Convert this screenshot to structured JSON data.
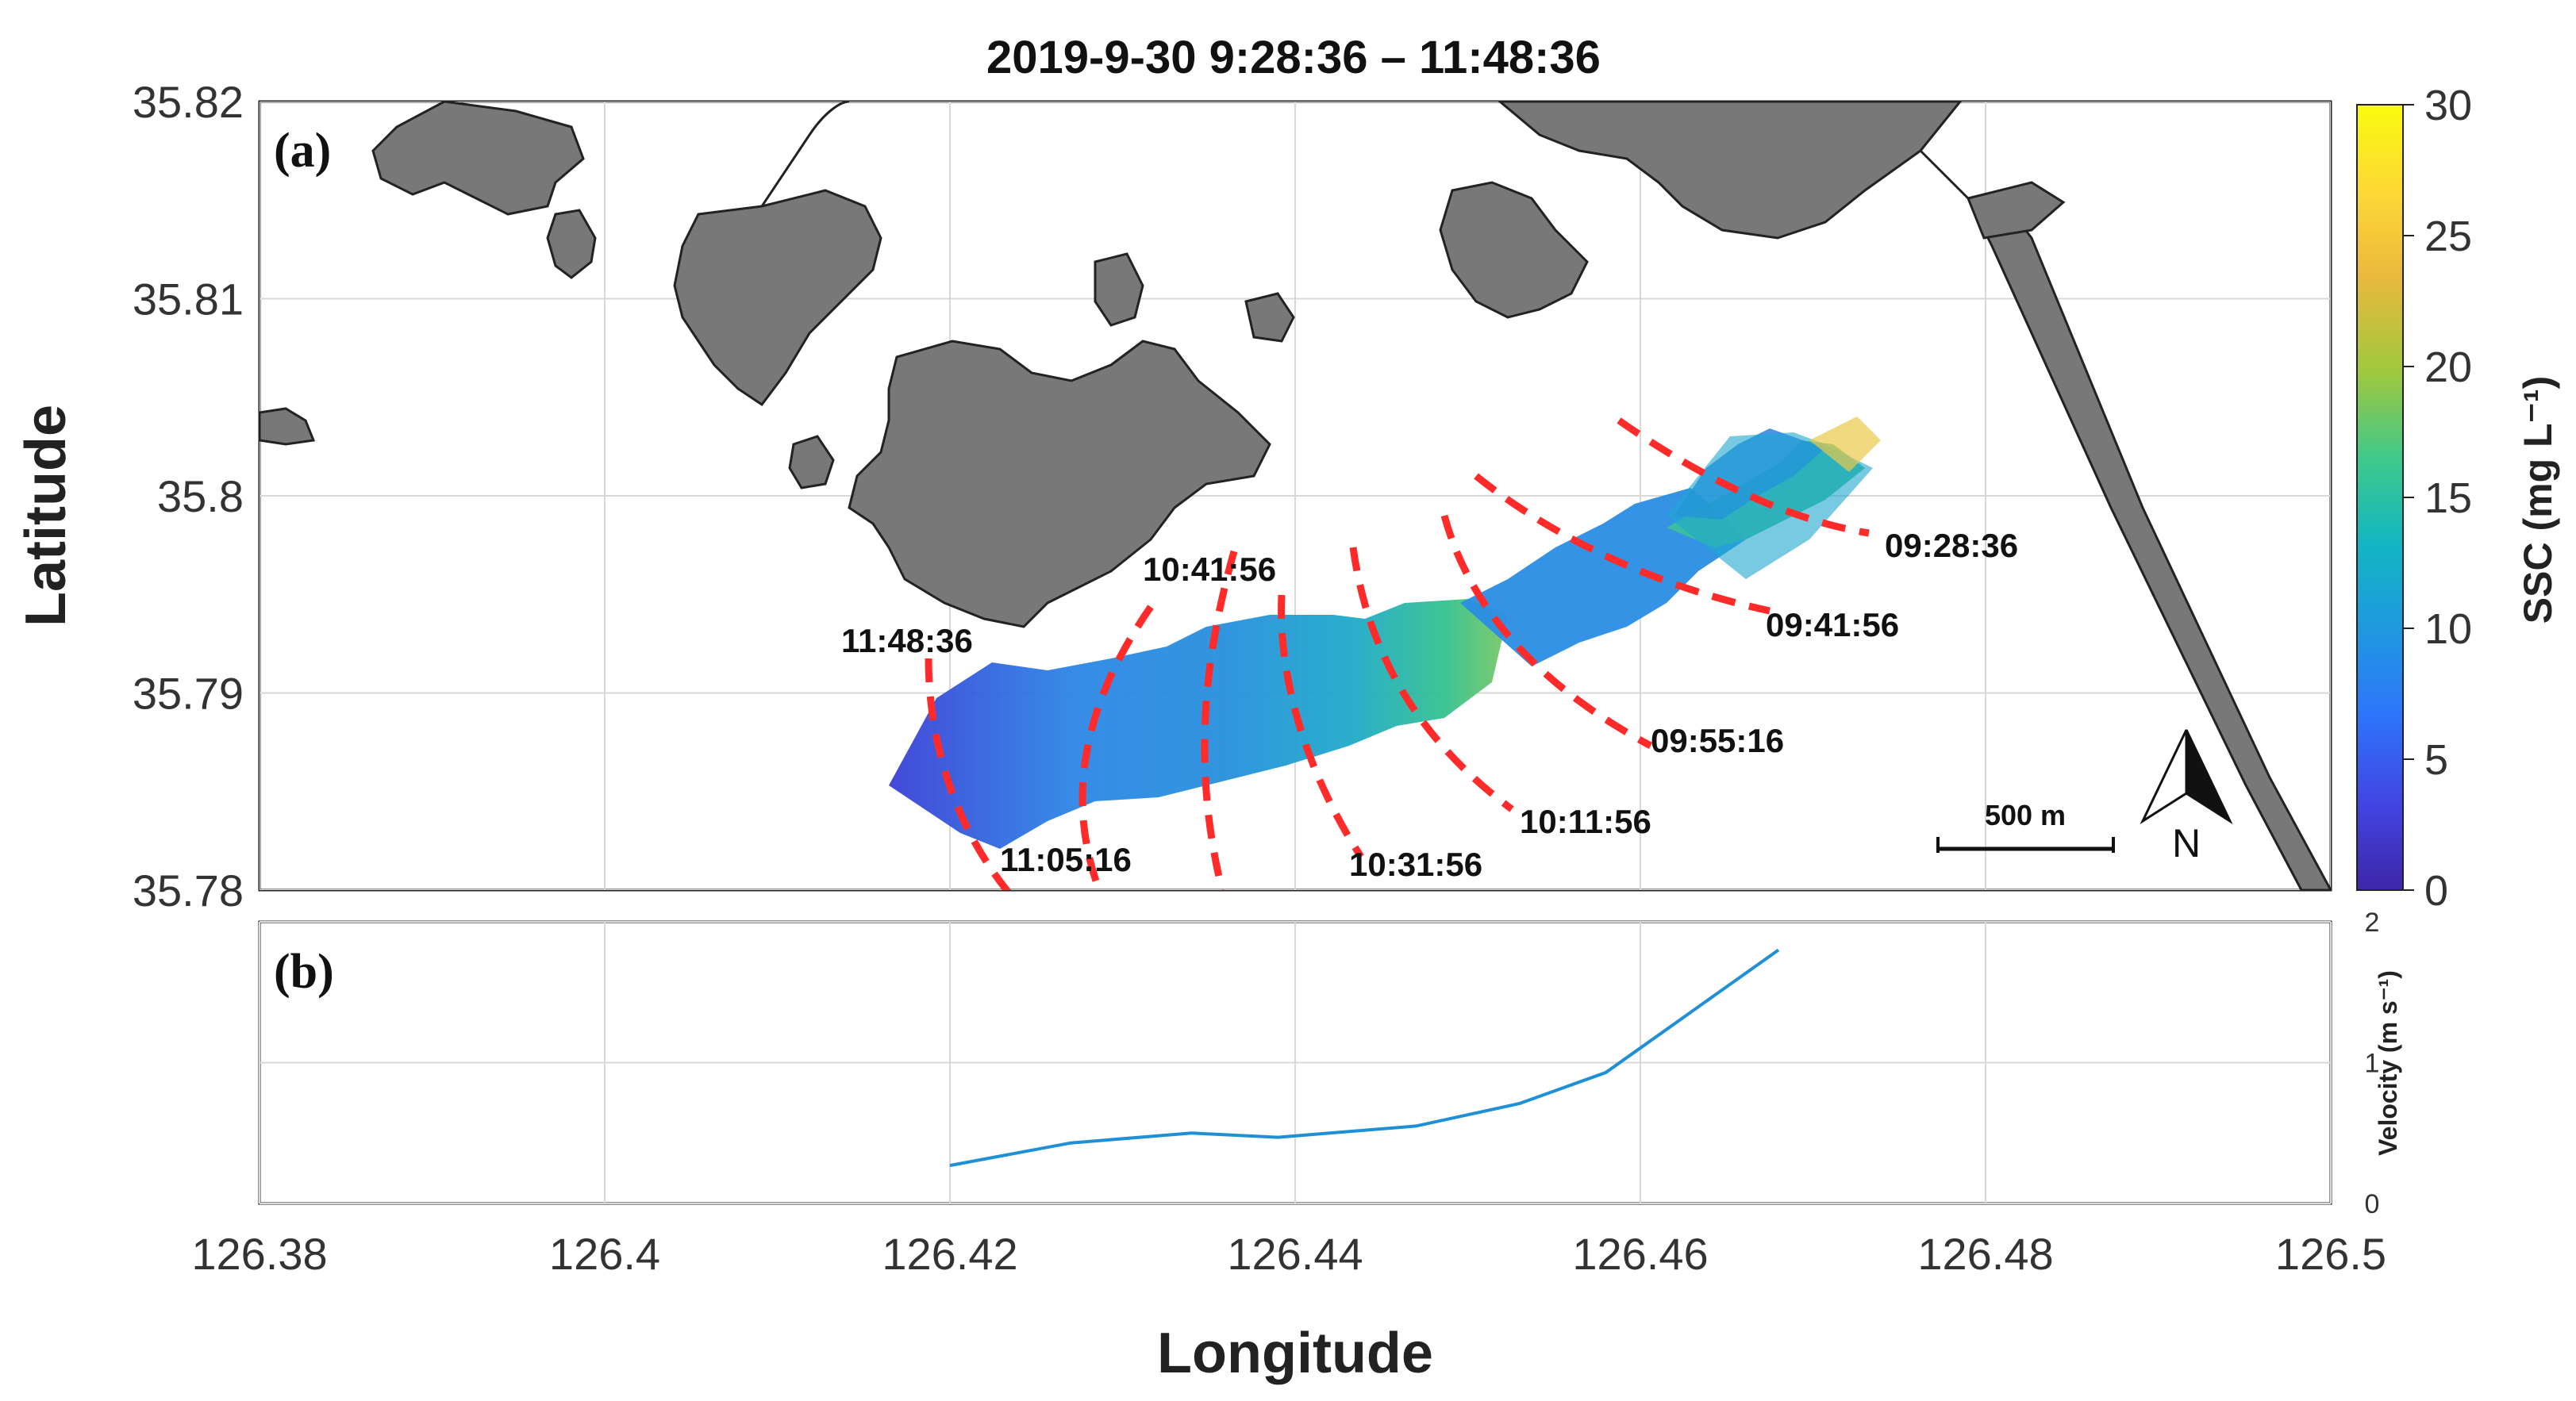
{
  "title": "2019-9-30     9:28:36  –  11:48:36",
  "panel_a": {
    "label": "(a)",
    "xlim": [
      126.38,
      126.5
    ],
    "ylim": [
      35.78,
      35.82
    ],
    "ylabel": "Latitude",
    "yticks": [
      "35.78",
      "35.79",
      "35.8",
      "35.81",
      "35.82"
    ],
    "ytick_values": [
      35.78,
      35.79,
      35.8,
      35.81,
      35.82
    ],
    "grid": true,
    "land_color": "#787878",
    "cross_sections": [
      {
        "time": "09:28:36"
      },
      {
        "time": "09:41:56"
      },
      {
        "time": "09:55:16"
      },
      {
        "time": "10:11:56"
      },
      {
        "time": "10:31:56"
      },
      {
        "time": "10:41:56"
      },
      {
        "time": "11:05:16"
      },
      {
        "time": "11:48:36"
      }
    ],
    "scale_bar": "500 m",
    "north_label": "N",
    "line_color": "#ff2a2a"
  },
  "panel_b": {
    "label": "(b)",
    "ylabel": "Velocity (m s⁻¹)",
    "ylim": [
      0,
      2
    ],
    "yticks": [
      "0",
      "1",
      "2"
    ],
    "line_color": "#1f8fd6",
    "series": {
      "x": [
        126.42,
        126.427,
        126.434,
        126.439,
        126.447,
        126.453,
        126.458,
        126.468
      ],
      "y": [
        0.27,
        0.43,
        0.5,
        0.47,
        0.55,
        0.71,
        0.93,
        1.8
      ]
    }
  },
  "xaxis": {
    "label": "Longitude",
    "ticks": [
      "126.38",
      "126.4",
      "126.42",
      "126.44",
      "126.46",
      "126.48",
      "126.5"
    ],
    "values": [
      126.38,
      126.4,
      126.42,
      126.44,
      126.46,
      126.48,
      126.5
    ]
  },
  "colorbar": {
    "label": "SSC (mg L⁻¹)",
    "min": 0,
    "max": 30,
    "ticks": [
      "0",
      "5",
      "10",
      "15",
      "20",
      "25",
      "30"
    ],
    "colormap": [
      "#3e26a8",
      "#4245e3",
      "#2e74fb",
      "#1f98e0",
      "#12b6c2",
      "#3fc98b",
      "#a0c83e",
      "#e9b93c",
      "#fdd835",
      "#f9fb0e"
    ]
  }
}
